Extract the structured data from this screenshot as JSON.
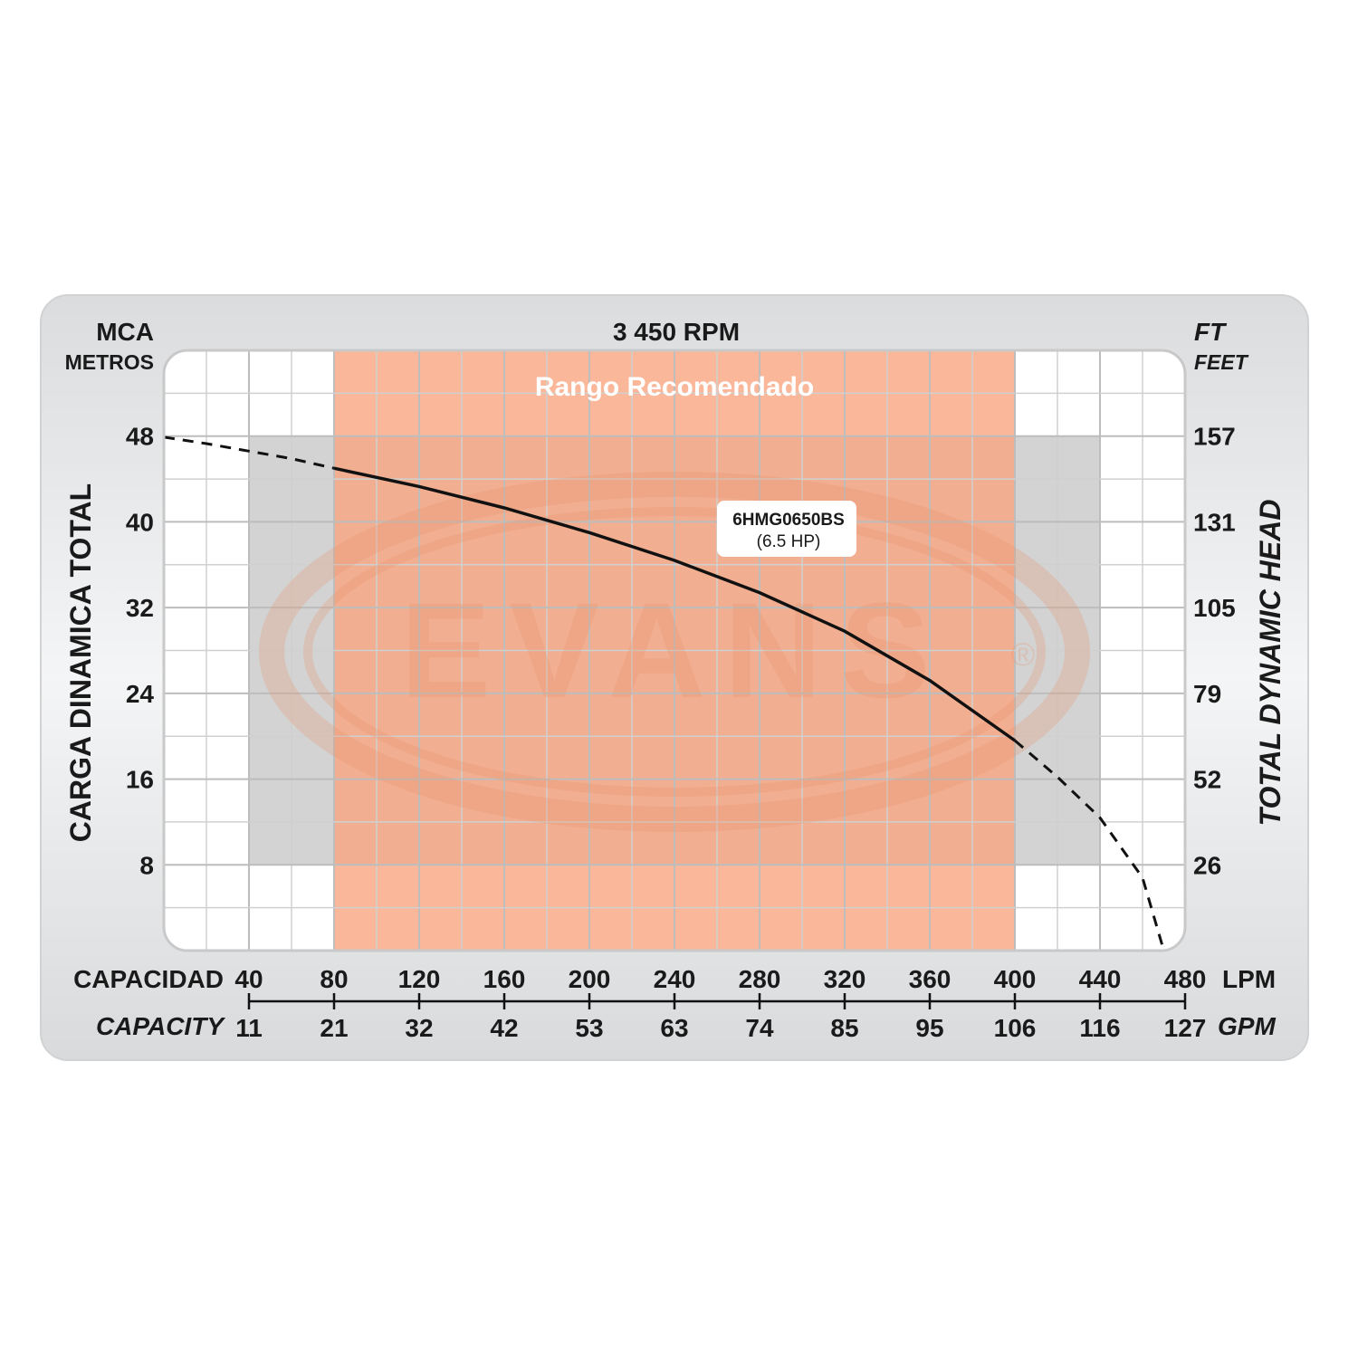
{
  "chart_data": {
    "type": "line",
    "title": "3 450 RPM",
    "left_axis": {
      "unit": "MCA",
      "unit_sub": "METROS",
      "label": "CARGA  DINAMICA  TOTAL",
      "ticks": [
        "8",
        "16",
        "24",
        "32",
        "40",
        "48"
      ]
    },
    "right_axis": {
      "unit": "FT",
      "unit_sub": "FEET",
      "label": "TOTAL  DYNAMIC  HEAD",
      "ticks": [
        "26",
        "52",
        "79",
        "105",
        "131",
        "157"
      ]
    },
    "bottom_axis": {
      "label": "CAPACIDAD",
      "unit": "LPM",
      "ticks": [
        "40",
        "80",
        "120",
        "160",
        "200",
        "240",
        "280",
        "320",
        "360",
        "400",
        "440",
        "480"
      ]
    },
    "bottom_axis_secondary": {
      "label": "CAPACITY",
      "unit": "GPM",
      "ticks": [
        "11",
        "21",
        "32",
        "42",
        "53",
        "63",
        "74",
        "85",
        "95",
        "106",
        "116",
        "127"
      ]
    },
    "recommended_range": {
      "label": "Rango Recomendado",
      "x_from": 80,
      "x_to": 400,
      "color": "#f9a57f"
    },
    "gray_band": {
      "x_from": 40,
      "x_to": 440,
      "y_from": 8,
      "y_to": 48,
      "color": "#d3d3d3"
    },
    "xlim": [
      0,
      480
    ],
    "ylim": [
      0,
      56
    ],
    "grid": true,
    "watermark": "EVANS",
    "series": [
      {
        "name": "6HMG0650BS",
        "sub_label": "(6.5 HP)",
        "solid_range": [
          80,
          400
        ],
        "x": [
          0,
          20,
          40,
          60,
          80,
          120,
          160,
          200,
          240,
          280,
          320,
          360,
          400,
          420,
          440,
          460,
          470
        ],
        "y": [
          47.9,
          47.3,
          46.6,
          45.9,
          45.0,
          43.3,
          41.3,
          39.0,
          36.4,
          33.4,
          29.8,
          25.2,
          19.6,
          16.2,
          12.4,
          6.8,
          0
        ]
      }
    ]
  }
}
